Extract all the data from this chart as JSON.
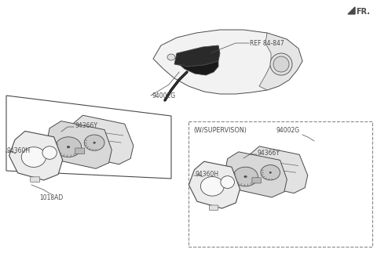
{
  "bg_color": "#ffffff",
  "lc": "#4a4a4a",
  "dc": "#888888",
  "fr_label": "FR.",
  "ref_label": "REF 84-847",
  "label_94002G_top": "94002G",
  "label_94002G_right": "94002G",
  "label_94366Y_left": "94366Y",
  "label_94366Y_right": "94366Y",
  "label_94360H_left": "94360H",
  "label_94360H_right": "94360H",
  "label_1018AD": "1018AD",
  "label_supervision": "(W/SUPERVISON)"
}
